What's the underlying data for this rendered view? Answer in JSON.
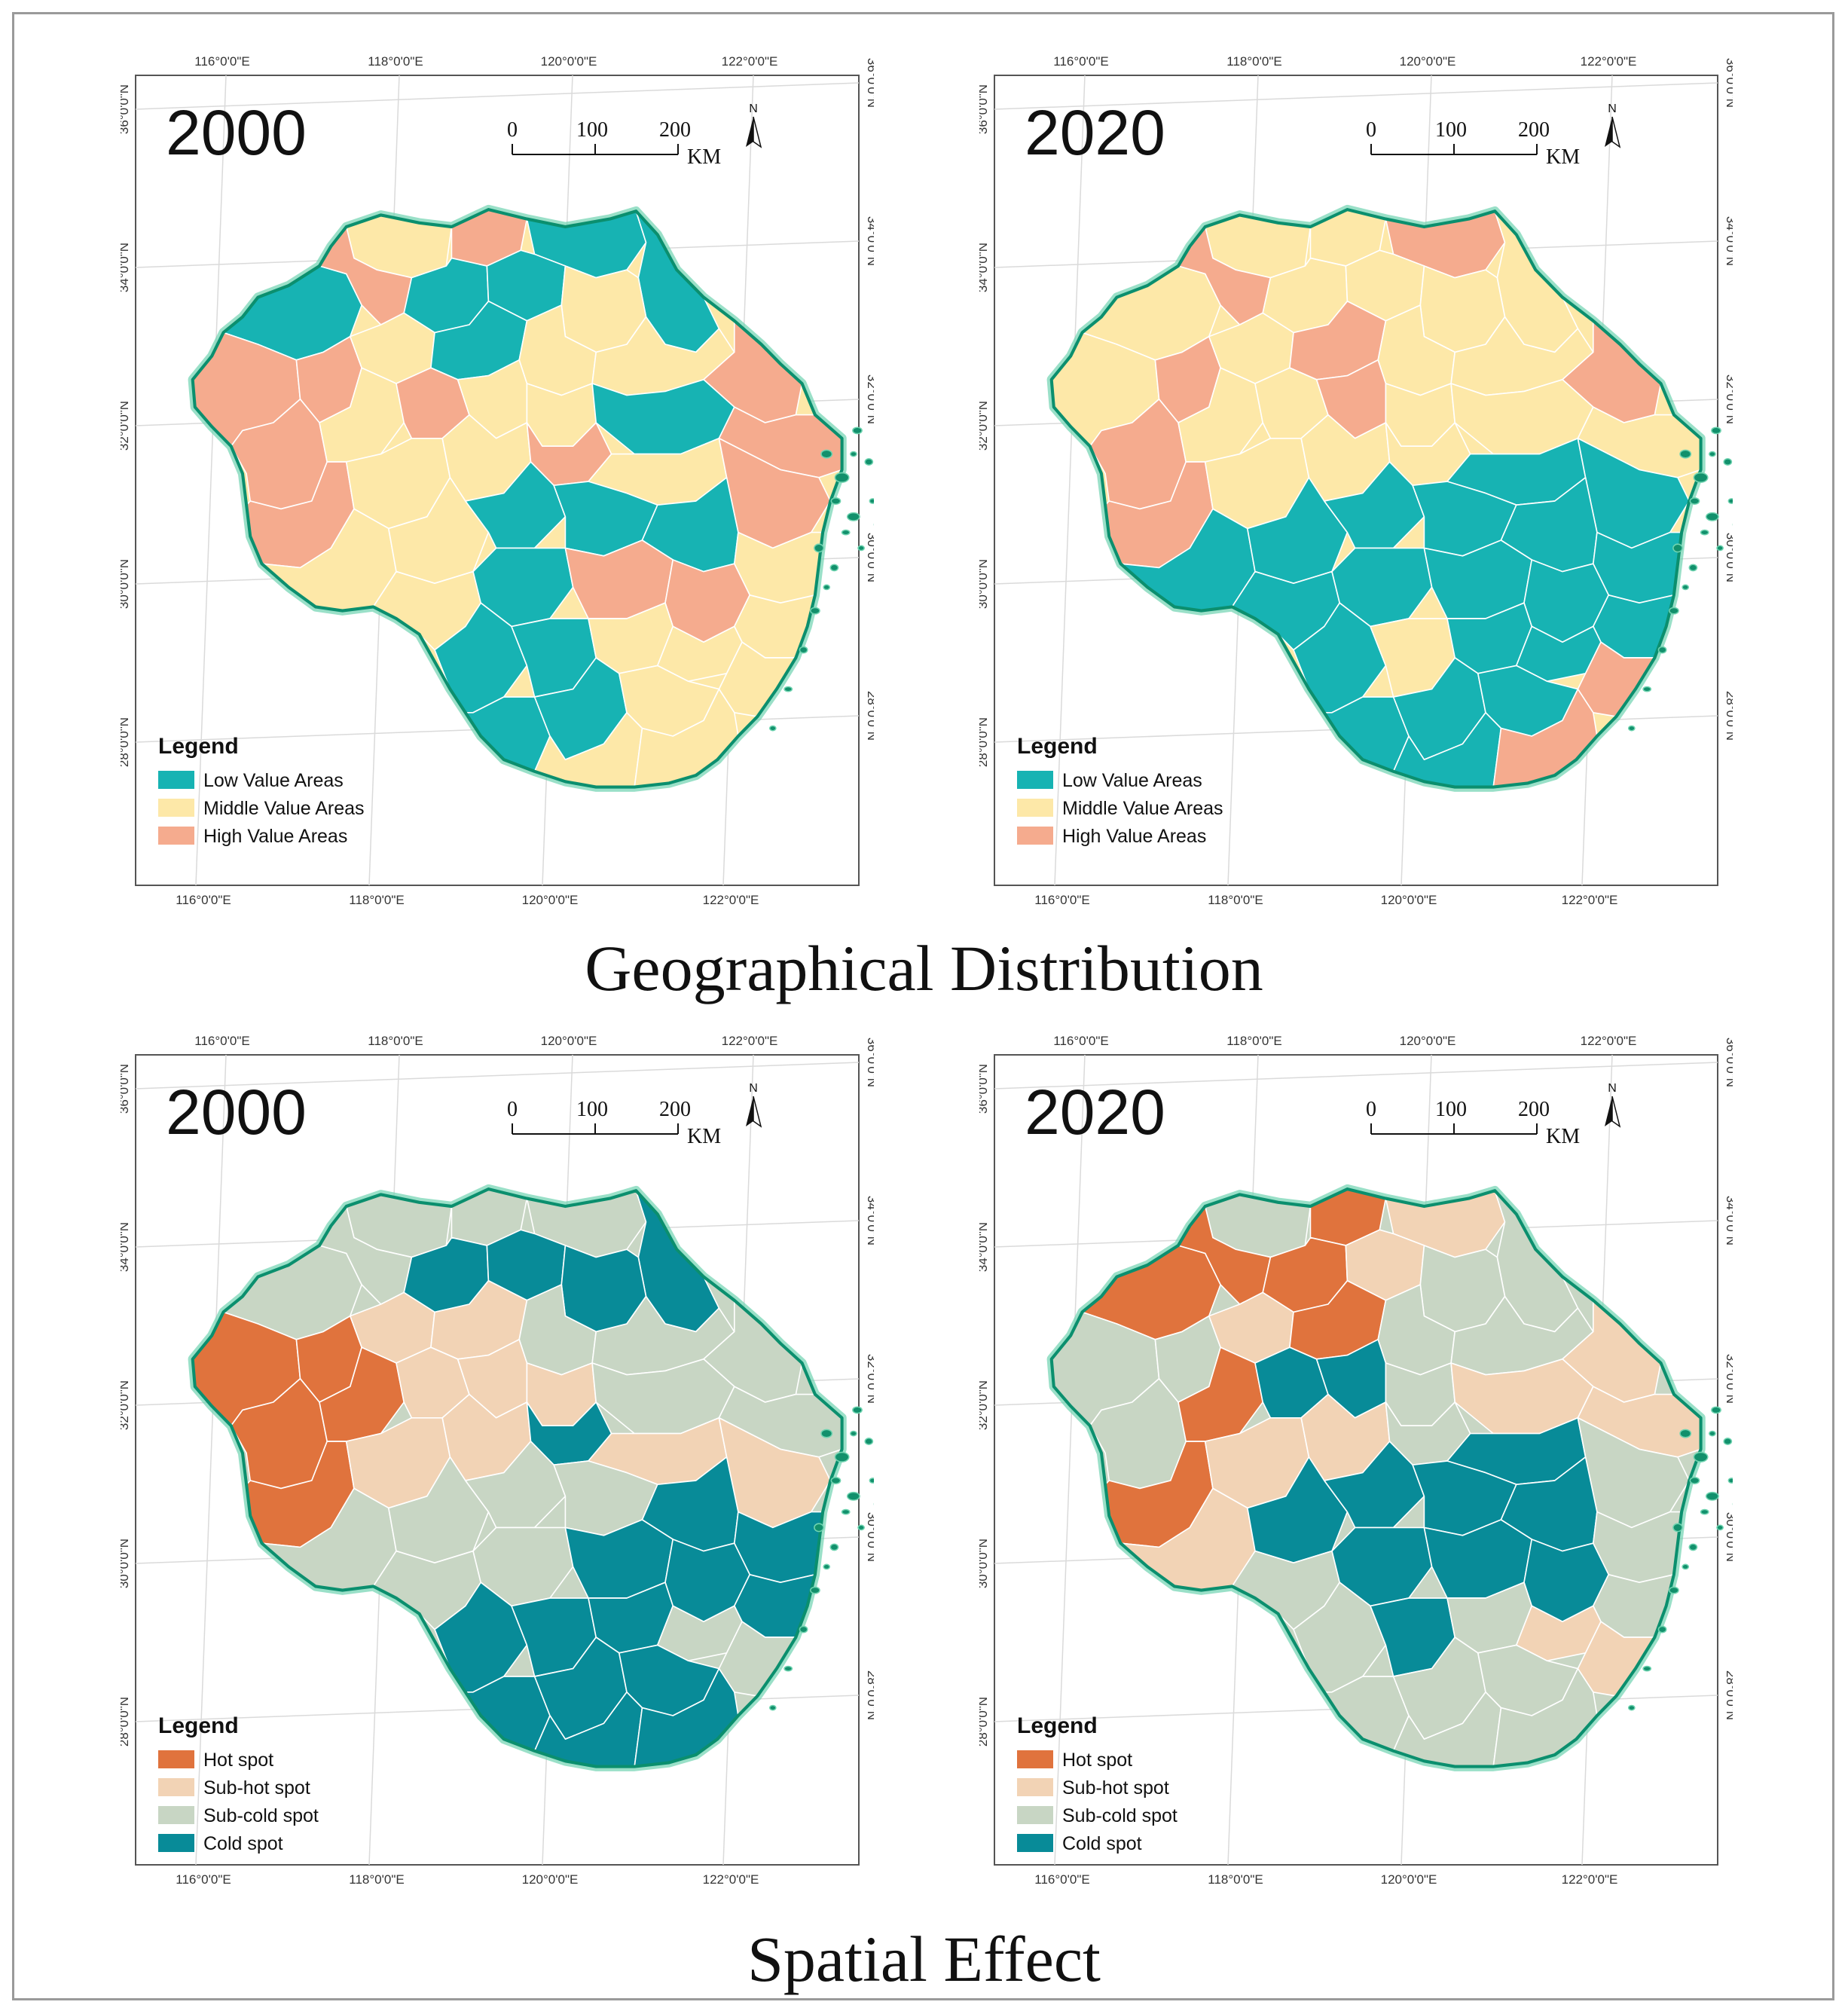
{
  "titles": {
    "top": "Geographical Distribution",
    "bottom": "Spatial Effect"
  },
  "axes": {
    "lon_labels": [
      "116°0'0\"E",
      "118°0'0\"E",
      "120°0'0\"E",
      "122°0'0\"E"
    ],
    "lat_labels": [
      "36°0'0\"N",
      "34°0'0\"N",
      "32°0'0\"N",
      "30°0'0\"N",
      "28°0'0\"N"
    ]
  },
  "scale": {
    "ticks": [
      "0",
      "100",
      "200"
    ],
    "unit": "KM"
  },
  "north": "N",
  "legend_title": "Legend",
  "schemes": {
    "value": [
      {
        "label": "Low Value Areas",
        "color": "#17b3b3"
      },
      {
        "label": "Middle Value Areas",
        "color": "#fde8a8"
      },
      {
        "label": "High Value Areas",
        "color": "#f5ab8e"
      }
    ],
    "spot": [
      {
        "label": "Hot spot",
        "color": "#e0733d"
      },
      {
        "label": "Sub-hot spot",
        "color": "#f2d3b5"
      },
      {
        "label": "Sub-cold spot",
        "color": "#c8d6c4"
      },
      {
        "label": "Cold spot",
        "color": "#088b98"
      }
    ]
  },
  "colors": {
    "outline": "#0b8f6e",
    "outline_glow": "#6fd3b0",
    "island": "#12906c",
    "inner_border": "#ffffff",
    "frame": "#9a9a9a"
  },
  "panels": [
    {
      "id": "gd-2000",
      "year": "2000",
      "scheme": "value"
    },
    {
      "id": "gd-2020",
      "year": "2020",
      "scheme": "value"
    },
    {
      "id": "se-2000",
      "year": "2000",
      "scheme": "spot"
    },
    {
      "id": "se-2020",
      "year": "2020",
      "scheme": "spot"
    }
  ]
}
